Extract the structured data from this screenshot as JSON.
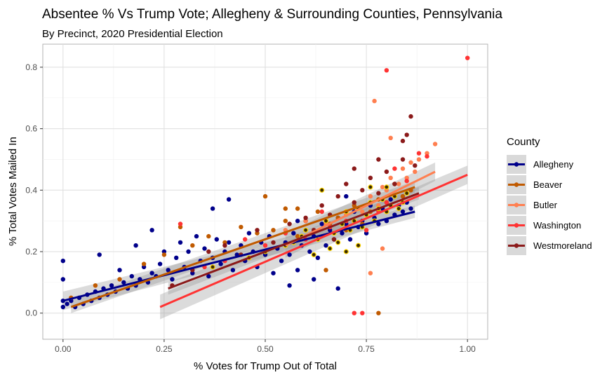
{
  "chart_data": {
    "type": "scatter",
    "title": "Absentee % Vs Trump Vote; Allegheny & Surrounding Counties, Pennsylvania",
    "subtitle": "By Precinct, 2020 Presidential Election",
    "xlabel": "% Votes for Trump Out of Total",
    "ylabel": "% Total Votes Mailed In",
    "xlim": [
      -0.05,
      1.05
    ],
    "ylim": [
      -0.085,
      0.875
    ],
    "x_ticks": [
      0.0,
      0.25,
      0.5,
      0.75,
      1.0
    ],
    "x_tick_labels": [
      "0.00",
      "0.25",
      "0.50",
      "0.75",
      "1.00"
    ],
    "y_ticks": [
      0.0,
      0.2,
      0.4,
      0.6,
      0.8
    ],
    "y_tick_labels": [
      "0.0",
      "0.2",
      "0.4",
      "0.6",
      "0.8"
    ],
    "grid": true,
    "legend": {
      "title": "County",
      "position": "right",
      "entries": [
        "Allegheny",
        "Beaver",
        "Butler",
        "Washington",
        "Westmoreland"
      ]
    },
    "series": [
      {
        "name": "Allegheny",
        "color": "#00008b",
        "points": [
          [
            0.0,
            0.17
          ],
          [
            0.0,
            0.11
          ],
          [
            0.0,
            0.04
          ],
          [
            0.0,
            0.02
          ],
          [
            0.01,
            0.03
          ],
          [
            0.02,
            0.04
          ],
          [
            0.03,
            0.02
          ],
          [
            0.04,
            0.05
          ],
          [
            0.05,
            0.03
          ],
          [
            0.06,
            0.06
          ],
          [
            0.07,
            0.04
          ],
          [
            0.08,
            0.07
          ],
          [
            0.09,
            0.19
          ],
          [
            0.09,
            0.05
          ],
          [
            0.1,
            0.08
          ],
          [
            0.11,
            0.06
          ],
          [
            0.12,
            0.09
          ],
          [
            0.13,
            0.07
          ],
          [
            0.14,
            0.14
          ],
          [
            0.15,
            0.1
          ],
          [
            0.16,
            0.08
          ],
          [
            0.17,
            0.12
          ],
          [
            0.18,
            0.22
          ],
          [
            0.18,
            0.09
          ],
          [
            0.19,
            0.11
          ],
          [
            0.2,
            0.15
          ],
          [
            0.21,
            0.1
          ],
          [
            0.22,
            0.13
          ],
          [
            0.22,
            0.27
          ],
          [
            0.23,
            0.12
          ],
          [
            0.24,
            0.16
          ],
          [
            0.25,
            0.2
          ],
          [
            0.26,
            0.14
          ],
          [
            0.27,
            0.11
          ],
          [
            0.28,
            0.18
          ],
          [
            0.29,
            0.23
          ],
          [
            0.3,
            0.15
          ],
          [
            0.31,
            0.2
          ],
          [
            0.32,
            0.13
          ],
          [
            0.33,
            0.25
          ],
          [
            0.34,
            0.17
          ],
          [
            0.35,
            0.21
          ],
          [
            0.36,
            0.12
          ],
          [
            0.37,
            0.18
          ],
          [
            0.38,
            0.24
          ],
          [
            0.39,
            0.16
          ],
          [
            0.4,
            0.2
          ],
          [
            0.41,
            0.23
          ],
          [
            0.42,
            0.14
          ],
          [
            0.43,
            0.19
          ],
          [
            0.44,
            0.22
          ],
          [
            0.45,
            0.17
          ],
          [
            0.46,
            0.26
          ],
          [
            0.47,
            0.2
          ],
          [
            0.48,
            0.15
          ],
          [
            0.49,
            0.23
          ],
          [
            0.5,
            0.19
          ],
          [
            0.51,
            0.25
          ],
          [
            0.52,
            0.13
          ],
          [
            0.53,
            0.21
          ],
          [
            0.54,
            0.17
          ],
          [
            0.55,
            0.23
          ],
          [
            0.56,
            0.19
          ],
          [
            0.57,
            0.26
          ],
          [
            0.58,
            0.14
          ],
          [
            0.59,
            0.22
          ],
          [
            0.6,
            0.3
          ],
          [
            0.61,
            0.2
          ],
          [
            0.62,
            0.25
          ],
          [
            0.63,
            0.18
          ],
          [
            0.64,
            0.29
          ],
          [
            0.65,
            0.22
          ],
          [
            0.66,
            0.27
          ],
          [
            0.67,
            0.24
          ],
          [
            0.68,
            0.31
          ],
          [
            0.69,
            0.26
          ],
          [
            0.7,
            0.29
          ],
          [
            0.71,
            0.24
          ],
          [
            0.72,
            0.33
          ],
          [
            0.73,
            0.28
          ],
          [
            0.74,
            0.3
          ],
          [
            0.75,
            0.26
          ],
          [
            0.76,
            0.35
          ],
          [
            0.77,
            0.31
          ],
          [
            0.78,
            0.29
          ],
          [
            0.79,
            0.34
          ],
          [
            0.8,
            0.3
          ],
          [
            0.81,
            0.37
          ],
          [
            0.82,
            0.32
          ],
          [
            0.83,
            0.35
          ],
          [
            0.84,
            0.33
          ],
          [
            0.85,
            0.36
          ],
          [
            0.86,
            0.34
          ],
          [
            0.62,
            0.11
          ],
          [
            0.68,
            0.08
          ],
          [
            0.37,
            0.34
          ],
          [
            0.41,
            0.37
          ],
          [
            0.58,
            0.3
          ],
          [
            0.64,
            0.4
          ],
          [
            0.7,
            0.38
          ],
          [
            0.56,
            0.09
          ]
        ],
        "fit_line": [
          [
            0.0,
            0.04
          ],
          [
            0.87,
            0.33
          ]
        ],
        "fit_band": [
          0.03,
          0.02
        ]
      },
      {
        "name": "Beaver",
        "color": "#c05a00",
        "points": [
          [
            0.02,
            0.05
          ],
          [
            0.08,
            0.09
          ],
          [
            0.14,
            0.11
          ],
          [
            0.2,
            0.16
          ],
          [
            0.25,
            0.19
          ],
          [
            0.29,
            0.28
          ],
          [
            0.32,
            0.22
          ],
          [
            0.36,
            0.25
          ],
          [
            0.4,
            0.23
          ],
          [
            0.44,
            0.28
          ],
          [
            0.48,
            0.26
          ],
          [
            0.5,
            0.38
          ],
          [
            0.52,
            0.27
          ],
          [
            0.55,
            0.3
          ],
          [
            0.58,
            0.25
          ],
          [
            0.6,
            0.3
          ],
          [
            0.63,
            0.33
          ],
          [
            0.66,
            0.29
          ],
          [
            0.68,
            0.31
          ],
          [
            0.7,
            0.27
          ],
          [
            0.72,
            0.35
          ],
          [
            0.74,
            0.29
          ],
          [
            0.76,
            0.33
          ],
          [
            0.78,
            0.37
          ],
          [
            0.8,
            0.36
          ],
          [
            0.82,
            0.42
          ],
          [
            0.84,
            0.38
          ],
          [
            0.86,
            0.4
          ],
          [
            0.78,
            0.0
          ],
          [
            0.65,
            0.14
          ],
          [
            0.58,
            0.34
          ],
          [
            0.55,
            0.34
          ]
        ],
        "fit_line": [
          [
            0.02,
            0.02
          ],
          [
            0.87,
            0.41
          ]
        ],
        "fit_band": [
          0.02,
          0.02
        ]
      },
      {
        "name": "Butler",
        "color": "#ff7f50",
        "points": [
          [
            0.55,
            0.27
          ],
          [
            0.6,
            0.3
          ],
          [
            0.65,
            0.29
          ],
          [
            0.7,
            0.32
          ],
          [
            0.72,
            0.36
          ],
          [
            0.74,
            0.33
          ],
          [
            0.76,
            0.38
          ],
          [
            0.77,
            0.69
          ],
          [
            0.78,
            0.35
          ],
          [
            0.79,
            0.41
          ],
          [
            0.8,
            0.4
          ],
          [
            0.81,
            0.44
          ],
          [
            0.82,
            0.38
          ],
          [
            0.83,
            0.42
          ],
          [
            0.84,
            0.47
          ],
          [
            0.85,
            0.44
          ],
          [
            0.86,
            0.49
          ],
          [
            0.87,
            0.46
          ],
          [
            0.88,
            0.5
          ],
          [
            0.9,
            0.52
          ],
          [
            0.92,
            0.55
          ],
          [
            0.76,
            0.13
          ],
          [
            0.79,
            0.21
          ],
          [
            0.81,
            0.57
          ]
        ],
        "fit_line": [
          [
            0.55,
            0.22
          ],
          [
            0.92,
            0.46
          ]
        ],
        "fit_band": [
          0.04,
          0.03
        ]
      },
      {
        "name": "Washington",
        "color": "#ff3333",
        "points": [
          [
            0.29,
            0.29
          ],
          [
            0.35,
            0.15
          ],
          [
            0.4,
            0.17
          ],
          [
            0.45,
            0.24
          ],
          [
            0.5,
            0.22
          ],
          [
            0.55,
            0.26
          ],
          [
            0.6,
            0.24
          ],
          [
            0.64,
            0.33
          ],
          [
            0.66,
            0.28
          ],
          [
            0.7,
            0.3
          ],
          [
            0.72,
            0.0
          ],
          [
            0.74,
            0.0
          ],
          [
            0.75,
            0.27
          ],
          [
            0.78,
            0.33
          ],
          [
            0.8,
            0.36
          ],
          [
            0.8,
            0.79
          ],
          [
            0.82,
            0.47
          ],
          [
            0.85,
            0.43
          ],
          [
            0.88,
            0.52
          ],
          [
            0.9,
            0.51
          ],
          [
            1.0,
            0.83
          ]
        ],
        "fit_line": [
          [
            0.24,
            0.02
          ],
          [
            1.0,
            0.45
          ]
        ],
        "fit_band": [
          0.04,
          0.03
        ]
      },
      {
        "name": "Westmoreland",
        "color": "#8b1a1a",
        "points": [
          [
            0.27,
            0.09
          ],
          [
            0.32,
            0.14
          ],
          [
            0.36,
            0.2
          ],
          [
            0.4,
            0.22
          ],
          [
            0.44,
            0.19
          ],
          [
            0.48,
            0.27
          ],
          [
            0.52,
            0.23
          ],
          [
            0.56,
            0.29
          ],
          [
            0.6,
            0.31
          ],
          [
            0.62,
            0.27
          ],
          [
            0.64,
            0.35
          ],
          [
            0.66,
            0.32
          ],
          [
            0.68,
            0.38
          ],
          [
            0.7,
            0.42
          ],
          [
            0.72,
            0.36
          ],
          [
            0.74,
            0.4
          ],
          [
            0.76,
            0.44
          ],
          [
            0.78,
            0.39
          ],
          [
            0.8,
            0.46
          ],
          [
            0.82,
            0.42
          ],
          [
            0.84,
            0.5
          ],
          [
            0.85,
            0.58
          ],
          [
            0.86,
            0.64
          ],
          [
            0.87,
            0.48
          ],
          [
            0.84,
            0.56
          ],
          [
            0.78,
            0.5
          ],
          [
            0.72,
            0.47
          ],
          [
            0.67,
            0.24
          ]
        ],
        "fit_line": [
          [
            0.26,
            0.08
          ],
          [
            0.88,
            0.39
          ]
        ],
        "fit_band": [
          0.02,
          0.02
        ]
      }
    ],
    "highlight_points": {
      "color": "#ffd700",
      "points": [
        [
          0.6,
          0.27
        ],
        [
          0.63,
          0.24
        ],
        [
          0.65,
          0.3
        ],
        [
          0.67,
          0.26
        ],
        [
          0.69,
          0.29
        ],
        [
          0.7,
          0.33
        ],
        [
          0.71,
          0.27
        ],
        [
          0.72,
          0.3
        ],
        [
          0.73,
          0.34
        ],
        [
          0.74,
          0.28
        ],
        [
          0.75,
          0.32
        ],
        [
          0.76,
          0.36
        ],
        [
          0.77,
          0.3
        ],
        [
          0.78,
          0.34
        ],
        [
          0.79,
          0.37
        ],
        [
          0.8,
          0.33
        ],
        [
          0.81,
          0.35
        ],
        [
          0.82,
          0.38
        ],
        [
          0.83,
          0.34
        ],
        [
          0.84,
          0.36
        ],
        [
          0.85,
          0.39
        ],
        [
          0.66,
          0.21
        ],
        [
          0.68,
          0.23
        ],
        [
          0.62,
          0.19
        ],
        [
          0.37,
          0.15
        ],
        [
          0.46,
          0.18
        ],
        [
          0.5,
          0.2
        ],
        [
          0.55,
          0.22
        ],
        [
          0.64,
          0.4
        ],
        [
          0.76,
          0.41
        ],
        [
          0.8,
          0.41
        ],
        [
          0.57,
          0.23
        ],
        [
          0.73,
          0.22
        ],
        [
          0.7,
          0.2
        ],
        [
          0.59,
          0.25
        ]
      ]
    }
  }
}
